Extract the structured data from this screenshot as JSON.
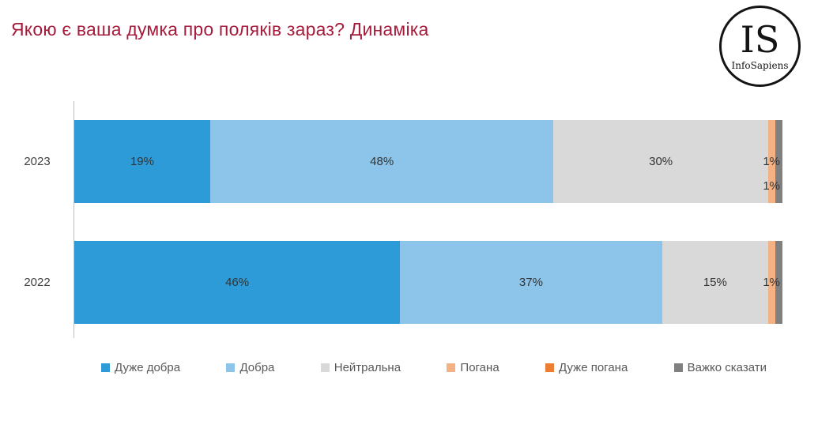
{
  "title": "Якою є ваша думка про поляків зараз? Динаміка",
  "logo": {
    "initials": "IS",
    "name": "InfoSapiens"
  },
  "chart_data": {
    "type": "bar",
    "stacked": true,
    "orientation": "horizontal",
    "title": "Якою є ваша думка про поляків зараз? Динаміка",
    "categories": [
      "2023",
      "2022"
    ],
    "series": [
      {
        "name": "Дуже добра",
        "color": "#2E9BD9",
        "values": [
          19,
          46
        ],
        "labels": [
          "19%",
          "46%"
        ]
      },
      {
        "name": "Добра",
        "color": "#8CC5E9",
        "values": [
          48,
          37
        ],
        "labels": [
          "48%",
          "37%"
        ]
      },
      {
        "name": "Нейтральна",
        "color": "#D9D9D9",
        "values": [
          30,
          15
        ],
        "labels": [
          "30%",
          "15%"
        ]
      },
      {
        "name": "Погана",
        "color": "#F4B183",
        "values": [
          1,
          1
        ],
        "labels": [
          "1%",
          "1%"
        ]
      },
      {
        "name": "Дуже погана",
        "color": "#ED7D31",
        "values": [
          0,
          0
        ],
        "labels": [
          "",
          ""
        ]
      },
      {
        "name": "Важко сказати",
        "color": "#808080",
        "values": [
          1,
          1
        ],
        "labels": [
          "1%",
          ""
        ]
      }
    ],
    "xlim": [
      0,
      100
    ],
    "grid": false,
    "legend_position": "bottom"
  }
}
